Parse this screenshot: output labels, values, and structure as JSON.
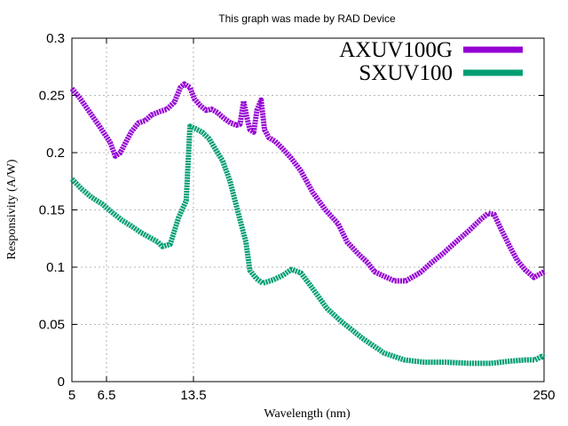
{
  "chart_data": {
    "type": "line",
    "title": "This graph was made by RAD Device",
    "xlabel": "Wavelength (nm)",
    "ylabel": "Responsivity (A/W)",
    "ylim": [
      0,
      0.3
    ],
    "x_ticks": [
      "5",
      "6.5",
      "13.5",
      "250"
    ],
    "y_ticks": [
      "0",
      "0.05",
      "0.1",
      "0.15",
      "0.2",
      "0.25",
      "0.3"
    ],
    "grid": true,
    "legend_position": "top-right",
    "series": [
      {
        "name": "AXUV100G",
        "color": "#9400d3",
        "points": [
          [
            5.0,
            0.256
          ],
          [
            5.3,
            0.248
          ],
          [
            5.7,
            0.236
          ],
          [
            6.2,
            0.222
          ],
          [
            6.7,
            0.209
          ],
          [
            7.0,
            0.197
          ],
          [
            7.3,
            0.2
          ],
          [
            7.6,
            0.208
          ],
          [
            8.0,
            0.218
          ],
          [
            8.5,
            0.226
          ],
          [
            9.0,
            0.228
          ],
          [
            9.5,
            0.233
          ],
          [
            10.2,
            0.236
          ],
          [
            10.8,
            0.238
          ],
          [
            11.5,
            0.244
          ],
          [
            12.1,
            0.257
          ],
          [
            12.5,
            0.26
          ],
          [
            13.1,
            0.257
          ],
          [
            13.6,
            0.247
          ],
          [
            14.3,
            0.241
          ],
          [
            15.0,
            0.237
          ],
          [
            15.7,
            0.238
          ],
          [
            16.5,
            0.235
          ],
          [
            17.4,
            0.23
          ],
          [
            18.4,
            0.226
          ],
          [
            19.3,
            0.224
          ],
          [
            19.9,
            0.225
          ],
          [
            20.5,
            0.245
          ],
          [
            21.0,
            0.232
          ],
          [
            21.6,
            0.22
          ],
          [
            22.3,
            0.218
          ],
          [
            22.9,
            0.237
          ],
          [
            23.7,
            0.246
          ],
          [
            24.4,
            0.22
          ],
          [
            25.3,
            0.213
          ],
          [
            26.6,
            0.21
          ],
          [
            28.0,
            0.205
          ],
          [
            30.5,
            0.195
          ],
          [
            33.0,
            0.184
          ],
          [
            36.5,
            0.165
          ],
          [
            40.5,
            0.15
          ],
          [
            45.0,
            0.138
          ],
          [
            48.5,
            0.122
          ],
          [
            53.0,
            0.112
          ],
          [
            57.5,
            0.104
          ],
          [
            61.0,
            0.096
          ],
          [
            66.0,
            0.092
          ],
          [
            72.0,
            0.088
          ],
          [
            79.0,
            0.088
          ],
          [
            89.0,
            0.095
          ],
          [
            98.0,
            0.104
          ],
          [
            108.0,
            0.112
          ],
          [
            120.0,
            0.122
          ],
          [
            134.0,
            0.132
          ],
          [
            148.0,
            0.142
          ],
          [
            157.0,
            0.147
          ],
          [
            165.0,
            0.146
          ],
          [
            175.0,
            0.133
          ],
          [
            188.0,
            0.118
          ],
          [
            200.0,
            0.106
          ],
          [
            213.0,
            0.098
          ],
          [
            230.0,
            0.091
          ],
          [
            250.0,
            0.096
          ]
        ]
      },
      {
        "name": "SXUV100",
        "color": "#009e73",
        "points": [
          [
            5.0,
            0.177
          ],
          [
            5.4,
            0.168
          ],
          [
            5.8,
            0.161
          ],
          [
            6.3,
            0.155
          ],
          [
            6.8,
            0.148
          ],
          [
            7.4,
            0.141
          ],
          [
            8.0,
            0.136
          ],
          [
            8.7,
            0.13
          ],
          [
            9.5,
            0.125
          ],
          [
            10.0,
            0.122
          ],
          [
            10.4,
            0.118
          ],
          [
            11.1,
            0.12
          ],
          [
            11.9,
            0.143
          ],
          [
            12.7,
            0.158
          ],
          [
            13.1,
            0.223
          ],
          [
            13.7,
            0.221
          ],
          [
            14.5,
            0.218
          ],
          [
            15.4,
            0.212
          ],
          [
            16.2,
            0.203
          ],
          [
            17.2,
            0.193
          ],
          [
            18.3,
            0.175
          ],
          [
            19.6,
            0.147
          ],
          [
            20.9,
            0.122
          ],
          [
            21.6,
            0.097
          ],
          [
            22.8,
            0.09
          ],
          [
            24.0,
            0.086
          ],
          [
            26.3,
            0.089
          ],
          [
            28.5,
            0.093
          ],
          [
            30.5,
            0.098
          ],
          [
            33.0,
            0.095
          ],
          [
            36.0,
            0.083
          ],
          [
            41.0,
            0.064
          ],
          [
            46.0,
            0.053
          ],
          [
            55.0,
            0.038
          ],
          [
            66.0,
            0.025
          ],
          [
            78.0,
            0.019
          ],
          [
            92.0,
            0.017
          ],
          [
            110.0,
            0.017
          ],
          [
            135.0,
            0.016
          ],
          [
            160.0,
            0.016
          ],
          [
            190.0,
            0.018
          ],
          [
            215.0,
            0.019
          ],
          [
            232.0,
            0.019
          ],
          [
            245.0,
            0.022
          ],
          [
            250.0,
            0.021
          ]
        ]
      }
    ]
  }
}
